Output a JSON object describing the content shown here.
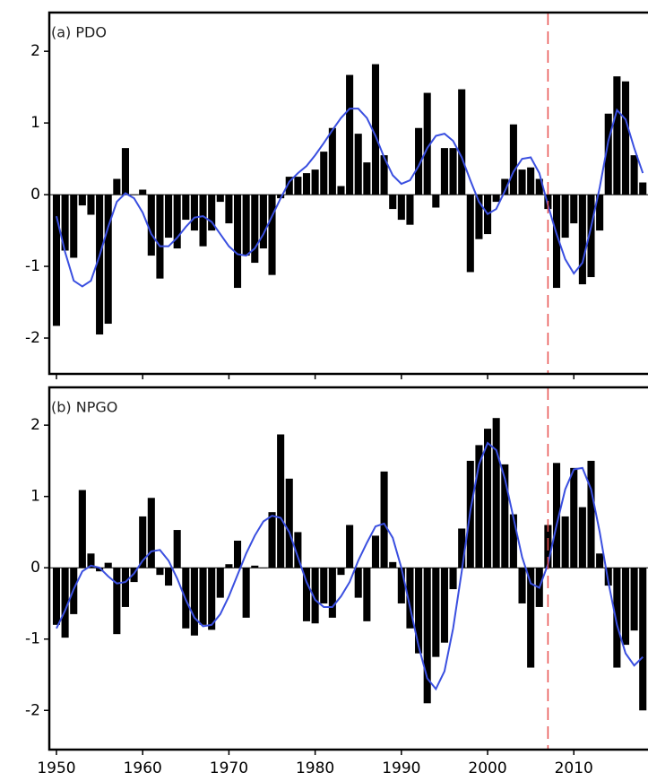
{
  "chart_data": [
    {
      "type": "bar",
      "label": "(a)  PDO",
      "x": [
        1950,
        1951,
        1952,
        1953,
        1954,
        1955,
        1956,
        1957,
        1958,
        1959,
        1960,
        1961,
        1962,
        1963,
        1964,
        1965,
        1966,
        1967,
        1968,
        1969,
        1970,
        1971,
        1972,
        1973,
        1974,
        1975,
        1976,
        1977,
        1978,
        1979,
        1980,
        1981,
        1982,
        1983,
        1984,
        1985,
        1986,
        1987,
        1988,
        1989,
        1990,
        1991,
        1992,
        1993,
        1994,
        1995,
        1996,
        1997,
        1998,
        1999,
        2000,
        2001,
        2002,
        2003,
        2004,
        2005,
        2006,
        2007,
        2008,
        2009,
        2010,
        2011,
        2012,
        2013,
        2014,
        2015,
        2016,
        2017,
        2018
      ],
      "values": [
        -1.83,
        -0.78,
        -0.88,
        -0.15,
        -0.28,
        -1.95,
        -1.8,
        0.22,
        0.65,
        0.0,
        0.07,
        -0.85,
        -1.17,
        -0.6,
        -0.75,
        -0.35,
        -0.5,
        -0.72,
        -0.5,
        -0.1,
        -0.4,
        -1.3,
        -0.85,
        -0.95,
        -0.75,
        -1.12,
        -0.05,
        0.25,
        0.25,
        0.3,
        0.35,
        0.6,
        0.93,
        0.12,
        1.67,
        0.85,
        0.45,
        1.82,
        0.55,
        -0.2,
        -0.35,
        -0.42,
        0.93,
        1.42,
        -0.18,
        0.65,
        0.65,
        1.47,
        -1.08,
        -0.62,
        -0.55,
        -0.1,
        0.22,
        0.98,
        0.35,
        0.38,
        0.22,
        -0.2,
        -1.3,
        -0.6,
        -0.4,
        -1.25,
        -1.15,
        -0.5,
        1.13,
        1.65,
        1.58,
        0.55,
        0.17
      ],
      "color": "#000000",
      "smooth": {
        "color": "#3a4fe0",
        "values": [
          -0.3,
          -0.8,
          -1.2,
          -1.28,
          -1.2,
          -0.85,
          -0.45,
          -0.1,
          0.02,
          -0.05,
          -0.25,
          -0.55,
          -0.72,
          -0.72,
          -0.6,
          -0.45,
          -0.32,
          -0.3,
          -0.38,
          -0.55,
          -0.72,
          -0.83,
          -0.85,
          -0.75,
          -0.55,
          -0.3,
          -0.05,
          0.18,
          0.3,
          0.4,
          0.55,
          0.72,
          0.9,
          1.07,
          1.2,
          1.2,
          1.07,
          0.82,
          0.52,
          0.27,
          0.15,
          0.2,
          0.4,
          0.65,
          0.82,
          0.85,
          0.75,
          0.52,
          0.2,
          -0.1,
          -0.27,
          -0.2,
          0.05,
          0.32,
          0.5,
          0.52,
          0.3,
          -0.15,
          -0.55,
          -0.9,
          -1.1,
          -0.95,
          -0.45,
          0.1,
          0.75,
          1.18,
          1.05,
          0.65,
          0.3
        ]
      },
      "vline": {
        "x": 2007,
        "color": "#e8504f"
      },
      "xlim": [
        1949.17,
        2018.6
      ],
      "ylim": [
        -2.5,
        2.54
      ],
      "yticks": [
        -2,
        -1,
        0,
        1,
        2
      ]
    },
    {
      "type": "bar",
      "label": "(b)  NPGO",
      "x": [
        1950,
        1951,
        1952,
        1953,
        1954,
        1955,
        1956,
        1957,
        1958,
        1959,
        1960,
        1961,
        1962,
        1963,
        1964,
        1965,
        1966,
        1967,
        1968,
        1969,
        1970,
        1971,
        1972,
        1973,
        1974,
        1975,
        1976,
        1977,
        1978,
        1979,
        1980,
        1981,
        1982,
        1983,
        1984,
        1985,
        1986,
        1987,
        1988,
        1989,
        1990,
        1991,
        1992,
        1993,
        1994,
        1995,
        1996,
        1997,
        1998,
        1999,
        2000,
        2001,
        2002,
        2003,
        2004,
        2005,
        2006,
        2007,
        2008,
        2009,
        2010,
        2011,
        2012,
        2013,
        2014,
        2015,
        2016,
        2017,
        2018
      ],
      "values": [
        -0.8,
        -0.98,
        -0.65,
        1.09,
        0.2,
        -0.05,
        0.07,
        -0.93,
        -0.55,
        -0.2,
        0.72,
        0.98,
        -0.1,
        -0.25,
        0.53,
        -0.85,
        -0.95,
        -0.8,
        -0.87,
        -0.42,
        0.05,
        0.38,
        -0.7,
        0.03,
        0.0,
        0.78,
        1.87,
        1.25,
        0.5,
        -0.75,
        -0.78,
        -0.5,
        -0.7,
        -0.1,
        0.6,
        -0.42,
        -0.75,
        0.45,
        1.35,
        0.08,
        -0.5,
        -0.85,
        -1.2,
        -1.9,
        -1.25,
        -1.05,
        -0.3,
        0.55,
        1.5,
        1.72,
        1.95,
        2.1,
        1.45,
        0.75,
        -0.5,
        -1.4,
        -0.55,
        0.6,
        1.47,
        0.72,
        1.4,
        0.85,
        1.5,
        0.2,
        -0.25,
        -1.4,
        -1.08,
        -0.88,
        -2.0
      ],
      "color": "#000000",
      "smooth": {
        "color": "#3a4fe0",
        "values": [
          -0.85,
          -0.6,
          -0.3,
          -0.05,
          0.03,
          0.0,
          -0.12,
          -0.22,
          -0.2,
          -0.08,
          0.1,
          0.23,
          0.25,
          0.1,
          -0.15,
          -0.45,
          -0.7,
          -0.82,
          -0.8,
          -0.65,
          -0.4,
          -0.1,
          0.2,
          0.45,
          0.65,
          0.73,
          0.7,
          0.5,
          0.15,
          -0.2,
          -0.45,
          -0.55,
          -0.55,
          -0.4,
          -0.2,
          0.1,
          0.35,
          0.58,
          0.62,
          0.42,
          0.0,
          -0.55,
          -1.1,
          -1.55,
          -1.7,
          -1.45,
          -0.85,
          -0.05,
          0.8,
          1.45,
          1.75,
          1.65,
          1.25,
          0.7,
          0.15,
          -0.22,
          -0.28,
          0.05,
          0.6,
          1.1,
          1.38,
          1.4,
          1.1,
          0.5,
          -0.2,
          -0.8,
          -1.2,
          -1.37,
          -1.25
        ]
      },
      "vline": {
        "x": 2007,
        "color": "#e8504f"
      },
      "xlim": [
        1949.17,
        2018.6
      ],
      "ylim": [
        -2.55,
        2.53
      ],
      "yticks": [
        -2,
        -1,
        0,
        1,
        2
      ],
      "xticks": [
        1950,
        1960,
        1970,
        1980,
        1990,
        2000,
        2010
      ]
    }
  ]
}
